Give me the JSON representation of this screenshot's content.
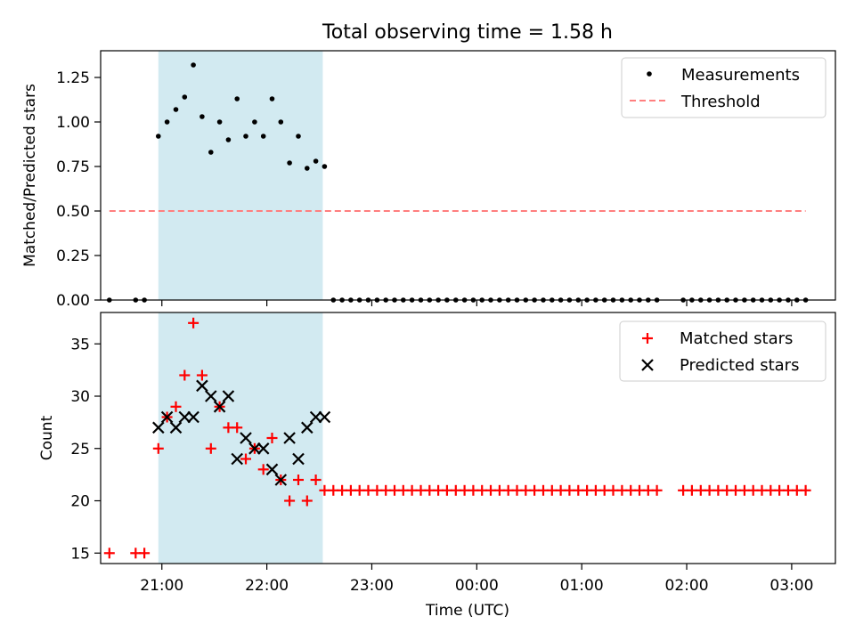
{
  "figure": {
    "title": "Total observing time = 1.58 h"
  },
  "colors": {
    "band": "#add8e6",
    "measurement": "#000000",
    "threshold": "#ff7f7f",
    "matched": "#ff0000",
    "predicted": "#000000"
  },
  "chart_data": [
    {
      "type": "scatter",
      "panel": "ratio",
      "title": "Total observing time = 1.58 h",
      "xlabel": "",
      "ylabel": "Matched/Predicted stars",
      "xlim": [
        "20:25",
        "03:25"
      ],
      "ylim": [
        0,
        1.4
      ],
      "yticks": [
        "0.00",
        "0.25",
        "0.50",
        "0.75",
        "1.00",
        "1.25"
      ],
      "grid": false,
      "legend_position": "top-right",
      "shaded_interval": [
        "20:58",
        "22:32"
      ],
      "series": [
        {
          "name": "Measurements",
          "marker": "dot",
          "points": [
            [
              "20:30",
              0
            ],
            [
              "20:45",
              0
            ],
            [
              "20:50",
              0
            ],
            [
              "20:58",
              0.92
            ],
            [
              "21:03",
              1.0
            ],
            [
              "21:08",
              1.07
            ],
            [
              "21:13",
              1.14
            ],
            [
              "21:18",
              1.32
            ],
            [
              "21:23",
              1.03
            ],
            [
              "21:28",
              0.83
            ],
            [
              "21:33",
              1.0
            ],
            [
              "21:38",
              0.9
            ],
            [
              "21:43",
              1.13
            ],
            [
              "21:48",
              0.92
            ],
            [
              "21:53",
              1.0
            ],
            [
              "21:58",
              0.92
            ],
            [
              "22:03",
              1.13
            ],
            [
              "22:08",
              1.0
            ],
            [
              "22:13",
              0.77
            ],
            [
              "22:18",
              0.92
            ],
            [
              "22:23",
              0.74
            ],
            [
              "22:28",
              0.78
            ],
            [
              "22:33",
              0.75
            ],
            [
              "22:38",
              0
            ],
            [
              "22:43",
              0
            ],
            [
              "22:48",
              0
            ],
            [
              "22:53",
              0
            ],
            [
              "22:58",
              0
            ],
            [
              "23:03",
              0
            ],
            [
              "23:08",
              0
            ],
            [
              "23:13",
              0
            ],
            [
              "23:18",
              0
            ],
            [
              "23:23",
              0
            ],
            [
              "23:28",
              0
            ],
            [
              "23:33",
              0
            ],
            [
              "23:38",
              0
            ],
            [
              "23:43",
              0
            ],
            [
              "23:48",
              0
            ],
            [
              "23:53",
              0
            ],
            [
              "23:58",
              0
            ],
            [
              "00:03",
              0
            ],
            [
              "00:08",
              0
            ],
            [
              "00:13",
              0
            ],
            [
              "00:18",
              0
            ],
            [
              "00:23",
              0
            ],
            [
              "00:28",
              0
            ],
            [
              "00:33",
              0
            ],
            [
              "00:38",
              0
            ],
            [
              "00:43",
              0
            ],
            [
              "00:48",
              0
            ],
            [
              "00:53",
              0
            ],
            [
              "00:58",
              0
            ],
            [
              "01:03",
              0
            ],
            [
              "01:08",
              0
            ],
            [
              "01:13",
              0
            ],
            [
              "01:18",
              0
            ],
            [
              "01:23",
              0
            ],
            [
              "01:28",
              0
            ],
            [
              "01:33",
              0
            ],
            [
              "01:38",
              0
            ],
            [
              "01:43",
              0
            ],
            [
              "01:58",
              0
            ],
            [
              "02:03",
              0
            ],
            [
              "02:08",
              0
            ],
            [
              "02:13",
              0
            ],
            [
              "02:18",
              0
            ],
            [
              "02:23",
              0
            ],
            [
              "02:28",
              0
            ],
            [
              "02:33",
              0
            ],
            [
              "02:38",
              0
            ],
            [
              "02:43",
              0
            ],
            [
              "02:48",
              0
            ],
            [
              "02:53",
              0
            ],
            [
              "02:58",
              0
            ],
            [
              "03:03",
              0
            ],
            [
              "03:08",
              0
            ]
          ]
        },
        {
          "name": "Threshold",
          "marker": "dashed-line",
          "points": [
            [
              "20:30",
              0.5
            ],
            [
              "03:08",
              0.5
            ]
          ]
        }
      ]
    },
    {
      "type": "scatter",
      "panel": "count",
      "xlabel": "Time (UTC)",
      "ylabel": "Count",
      "xlim": [
        "20:25",
        "03:25"
      ],
      "ylim": [
        14,
        38
      ],
      "yticks": [
        "15",
        "20",
        "25",
        "30",
        "35"
      ],
      "xticks": [
        "21:00",
        "22:00",
        "23:00",
        "00:00",
        "01:00",
        "02:00",
        "03:00"
      ],
      "grid": false,
      "legend_position": "top-right",
      "shaded_interval": [
        "20:58",
        "22:32"
      ],
      "series": [
        {
          "name": "Matched stars",
          "marker": "plus",
          "points": [
            [
              "20:30",
              15
            ],
            [
              "20:45",
              15
            ],
            [
              "20:50",
              15
            ],
            [
              "20:58",
              25
            ],
            [
              "21:03",
              28
            ],
            [
              "21:08",
              29
            ],
            [
              "21:13",
              32
            ],
            [
              "21:18",
              37
            ],
            [
              "21:23",
              32
            ],
            [
              "21:28",
              25
            ],
            [
              "21:33",
              29
            ],
            [
              "21:38",
              27
            ],
            [
              "21:43",
              27
            ],
            [
              "21:48",
              24
            ],
            [
              "21:53",
              25
            ],
            [
              "21:58",
              23
            ],
            [
              "22:03",
              26
            ],
            [
              "22:08",
              22
            ],
            [
              "22:13",
              20
            ],
            [
              "22:18",
              22
            ],
            [
              "22:23",
              20
            ],
            [
              "22:28",
              22
            ],
            [
              "22:33",
              21
            ],
            [
              "22:38",
              21
            ],
            [
              "22:43",
              21
            ],
            [
              "22:48",
              21
            ],
            [
              "22:53",
              21
            ],
            [
              "22:58",
              21
            ],
            [
              "23:03",
              21
            ],
            [
              "23:08",
              21
            ],
            [
              "23:13",
              21
            ],
            [
              "23:18",
              21
            ],
            [
              "23:23",
              21
            ],
            [
              "23:28",
              21
            ],
            [
              "23:33",
              21
            ],
            [
              "23:38",
              21
            ],
            [
              "23:43",
              21
            ],
            [
              "23:48",
              21
            ],
            [
              "23:53",
              21
            ],
            [
              "23:58",
              21
            ],
            [
              "00:03",
              21
            ],
            [
              "00:08",
              21
            ],
            [
              "00:13",
              21
            ],
            [
              "00:18",
              21
            ],
            [
              "00:23",
              21
            ],
            [
              "00:28",
              21
            ],
            [
              "00:33",
              21
            ],
            [
              "00:38",
              21
            ],
            [
              "00:43",
              21
            ],
            [
              "00:48",
              21
            ],
            [
              "00:53",
              21
            ],
            [
              "00:58",
              21
            ],
            [
              "01:03",
              21
            ],
            [
              "01:08",
              21
            ],
            [
              "01:13",
              21
            ],
            [
              "01:18",
              21
            ],
            [
              "01:23",
              21
            ],
            [
              "01:28",
              21
            ],
            [
              "01:33",
              21
            ],
            [
              "01:38",
              21
            ],
            [
              "01:43",
              21
            ],
            [
              "01:58",
              21
            ],
            [
              "02:03",
              21
            ],
            [
              "02:08",
              21
            ],
            [
              "02:13",
              21
            ],
            [
              "02:18",
              21
            ],
            [
              "02:23",
              21
            ],
            [
              "02:28",
              21
            ],
            [
              "02:33",
              21
            ],
            [
              "02:38",
              21
            ],
            [
              "02:43",
              21
            ],
            [
              "02:48",
              21
            ],
            [
              "02:53",
              21
            ],
            [
              "02:58",
              21
            ],
            [
              "03:03",
              21
            ],
            [
              "03:08",
              21
            ]
          ]
        },
        {
          "name": "Predicted stars",
          "marker": "x",
          "points": [
            [
              "20:58",
              27
            ],
            [
              "21:03",
              28
            ],
            [
              "21:08",
              27
            ],
            [
              "21:13",
              28
            ],
            [
              "21:18",
              28
            ],
            [
              "21:23",
              31
            ],
            [
              "21:28",
              30
            ],
            [
              "21:33",
              29
            ],
            [
              "21:38",
              30
            ],
            [
              "21:43",
              24
            ],
            [
              "21:48",
              26
            ],
            [
              "21:53",
              25
            ],
            [
              "21:58",
              25
            ],
            [
              "22:03",
              23
            ],
            [
              "22:08",
              22
            ],
            [
              "22:13",
              26
            ],
            [
              "22:18",
              24
            ],
            [
              "22:23",
              27
            ],
            [
              "22:28",
              28
            ],
            [
              "22:33",
              28
            ]
          ]
        }
      ]
    }
  ]
}
